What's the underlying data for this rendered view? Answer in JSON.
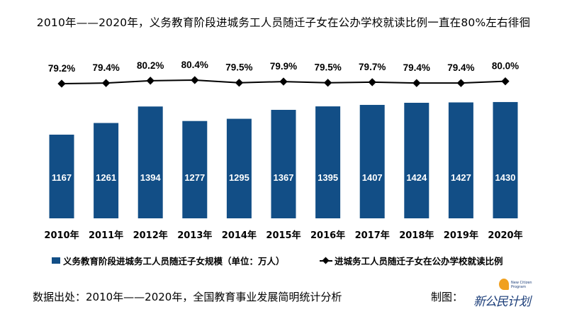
{
  "title": "2010年——2020年，义务教育阶段进城务工人员随迁子女在公办学校就读比例一直在80%左右徘徊",
  "chart_data": {
    "type": "bar+line",
    "categories": [
      "2010年",
      "2011年",
      "2012年",
      "2013年",
      "2014年",
      "2015年",
      "2016年",
      "2017年",
      "2018年",
      "2019年",
      "2020年"
    ],
    "series": [
      {
        "name": "义务教育阶段进城务工人员随迁子女规模（单位：万人）",
        "type": "bar",
        "color": "#124e86",
        "values": [
          1167,
          1261,
          1394,
          1277,
          1295,
          1367,
          1395,
          1407,
          1424,
          1427,
          1430
        ],
        "labels": [
          "1167",
          "1261",
          "1394",
          "1277",
          "1295",
          "1367",
          "1395",
          "1407",
          "1424",
          "1427",
          "1430"
        ]
      },
      {
        "name": "进城务工人员随迁子女在公办学校就读比例",
        "type": "line",
        "color": "#000000",
        "marker": "diamond",
        "values": [
          79.2,
          79.4,
          80.2,
          80.4,
          79.5,
          79.9,
          79.5,
          79.7,
          79.4,
          79.4,
          80.0
        ],
        "labels": [
          "79.2%",
          "79.4%",
          "80.2%",
          "80.4%",
          "79.5%",
          "79.9%",
          "79.5%",
          "79.7%",
          "79.4%",
          "79.4%",
          "80.0%"
        ]
      }
    ],
    "legend": "bottom",
    "grid": false
  },
  "footer": {
    "source": "数据出处：2010年——2020年，全国教育事业发展简明统计分析",
    "credit": "制图：",
    "logo_text": "新公民计划",
    "logo_en": "New Citizen Program"
  }
}
